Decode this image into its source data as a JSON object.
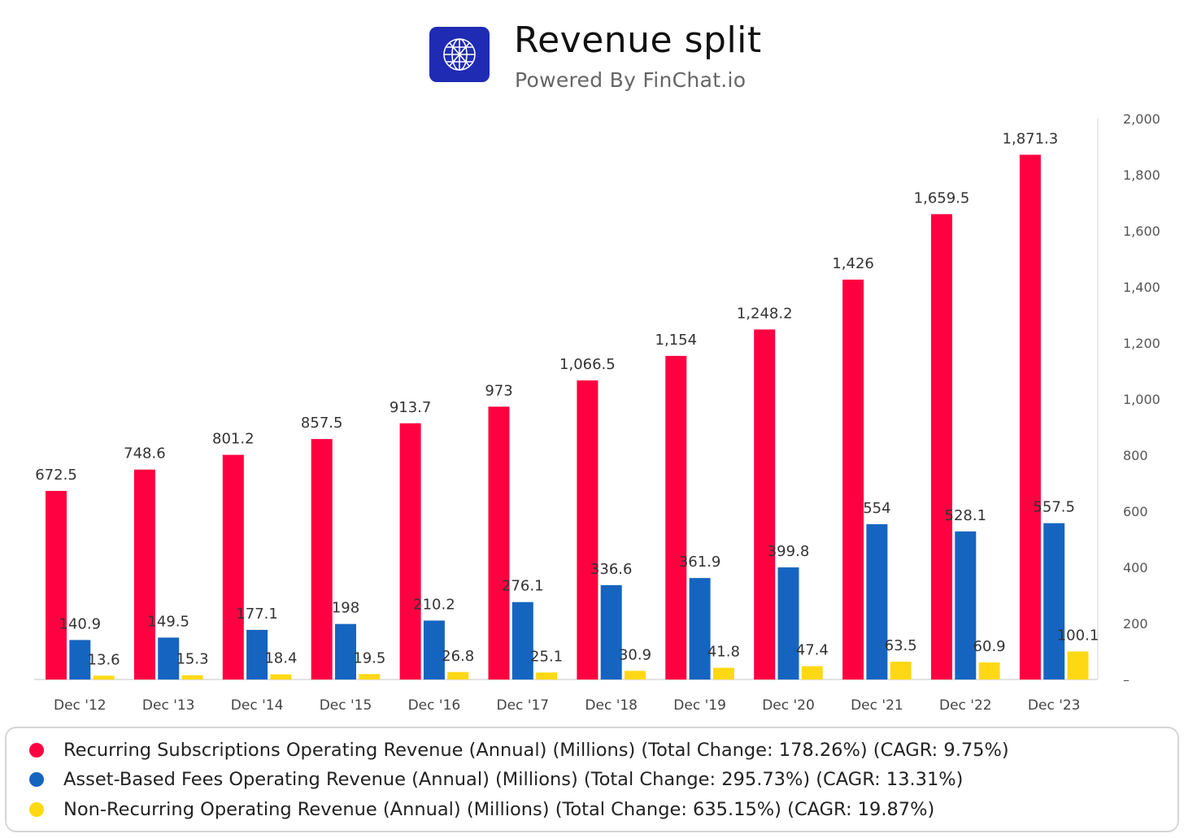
{
  "header": {
    "title": "Revenue split",
    "subtitle": "Powered By FinChat.io",
    "logo_icon": "globe-icon"
  },
  "colors": {
    "recurring": "#ff0040",
    "asset_based": "#1565c0",
    "non_recurring": "#ffd814",
    "logo_bg": "#1f2bb3"
  },
  "chart_data": {
    "type": "bar",
    "title": "Revenue split",
    "subtitle": "Powered By FinChat.io",
    "categories": [
      "Dec '12",
      "Dec '13",
      "Dec '14",
      "Dec '15",
      "Dec '16",
      "Dec '17",
      "Dec '18",
      "Dec '19",
      "Dec '20",
      "Dec '21",
      "Dec '22",
      "Dec '23"
    ],
    "series": [
      {
        "name": "Recurring Subscriptions Operating Revenue (Annual) (Millions) (Total Change: 178.26%) (CAGR: 9.75%)",
        "color": "#ff0040",
        "values": [
          672.5,
          748.6,
          801.2,
          857.5,
          913.7,
          973,
          1066.5,
          1154,
          1248.2,
          1426,
          1659.5,
          1871.3
        ],
        "labels": [
          "672.5",
          "748.6",
          "801.2",
          "857.5",
          "913.7",
          "973",
          "1,066.5",
          "1,154",
          "1,248.2",
          "1,426",
          "1,659.5",
          "1,871.3"
        ]
      },
      {
        "name": "Asset-Based Fees Operating Revenue (Annual) (Millions) (Total Change: 295.73%) (CAGR: 13.31%)",
        "color": "#1565c0",
        "values": [
          140.9,
          149.5,
          177.1,
          198,
          210.2,
          276.1,
          336.6,
          361.9,
          399.8,
          554,
          528.1,
          557.5
        ],
        "labels": [
          "140.9",
          "149.5",
          "177.1",
          "198",
          "210.2",
          "276.1",
          "336.6",
          "361.9",
          "399.8",
          "554",
          "528.1",
          "557.5"
        ]
      },
      {
        "name": "Non-Recurring Operating Revenue (Annual) (Millions) (Total Change: 635.15%) (CAGR: 19.87%)",
        "color": "#ffd814",
        "values": [
          13.6,
          15.3,
          18.4,
          19.5,
          26.8,
          25.1,
          30.9,
          41.8,
          47.4,
          63.5,
          60.9,
          100.1
        ],
        "labels": [
          "13.6",
          "15.3",
          "18.4",
          "19.5",
          "26.8",
          "25.1",
          "30.9",
          "41.8",
          "47.4",
          "63.5",
          "60.9",
          "100.1"
        ]
      }
    ],
    "ylim": [
      0,
      2000
    ],
    "yticks": [
      0,
      200,
      400,
      600,
      800,
      1000,
      1200,
      1400,
      1600,
      1800,
      2000
    ],
    "ytick_labels": [
      "–",
      "200",
      "400",
      "600",
      "800",
      "1,000",
      "1,200",
      "1,400",
      "1,600",
      "1,800",
      "2,000"
    ],
    "y_axis_side": "right",
    "grid": false,
    "legend_position": "bottom"
  }
}
